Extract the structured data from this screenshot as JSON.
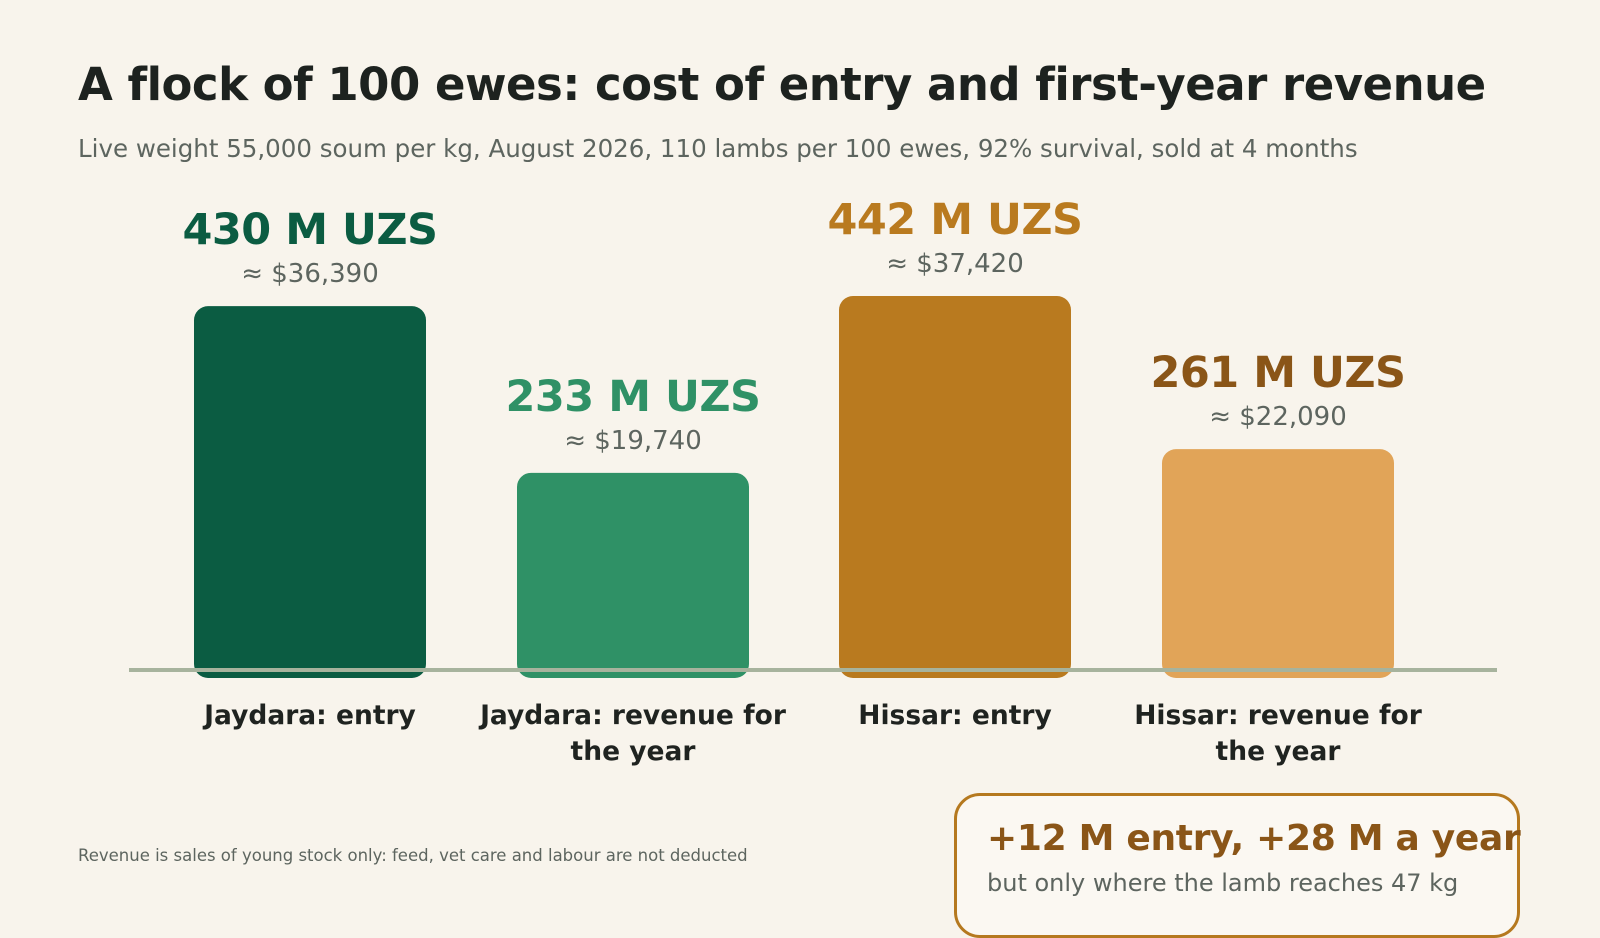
{
  "title": "A flock of 100 ewes: cost of entry and first-year revenue",
  "subtitle": "Live weight 55,000 soum per kg, August 2026, 110 lambs per 100 ewes, 92% survival, sold at 4 months",
  "footnote": "Revenue is sales of young stock only: feed, vet care and labour are not deducted",
  "callout": {
    "headline": "+12 M entry, +28 M a year",
    "sub": "but only where the lamb reaches 47 kg"
  },
  "colors": {
    "jaydara_entry": "#0b5c42",
    "jaydara_revenue": "#2f9166",
    "hissar_entry": "#b97a1f",
    "hissar_revenue": "#e1a458",
    "label_jaydara_entry": "#0b5c42",
    "label_jaydara_revenue": "#2f9166",
    "label_hissar_entry": "#b97a1f",
    "label_hissar_revenue": "#8a5517",
    "baseline": "#a7b39d",
    "callout_border": "#b5791f"
  },
  "chart_data": {
    "type": "bar",
    "categories": [
      [
        "Jaydara: entry"
      ],
      [
        "Jaydara: revenue for",
        "the year"
      ],
      [
        "Hissar: entry"
      ],
      [
        "Hissar: revenue for",
        "the year"
      ]
    ],
    "values": [
      430,
      233,
      442,
      261
    ],
    "value_labels": [
      "430 M UZS",
      "233 M UZS",
      "442 M UZS",
      "261 M UZS"
    ],
    "usd_labels": [
      "≈ $36,390",
      "≈ $19,740",
      "≈ $37,420",
      "≈ $22,090"
    ],
    "unit": "M UZS",
    "ylim": [
      0,
      442
    ],
    "grid": false,
    "legend": "none"
  }
}
